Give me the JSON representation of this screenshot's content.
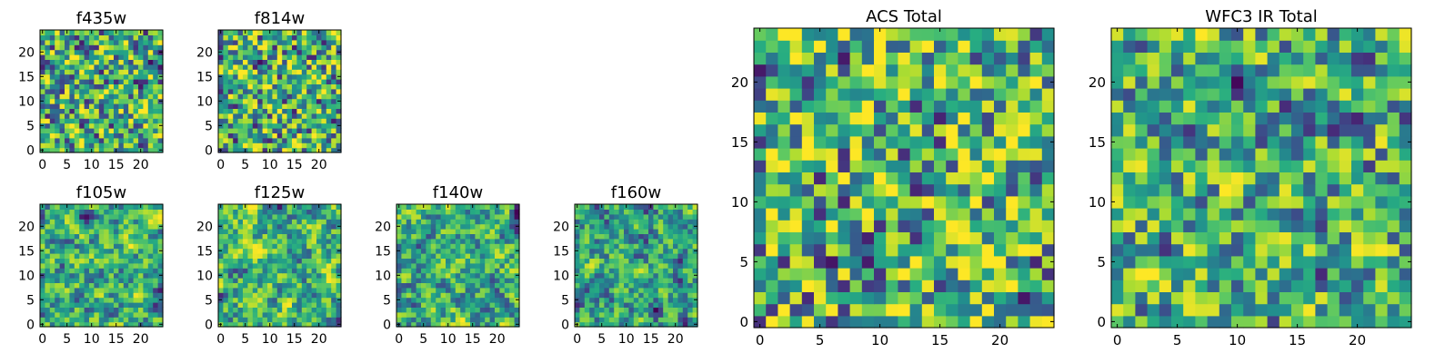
{
  "chart_data": [
    {
      "type": "heatmap",
      "title": "f435w",
      "xticks": [
        "0",
        "5",
        "10",
        "15",
        "20"
      ],
      "yticks": [
        "0",
        "5",
        "10",
        "15",
        "20"
      ],
      "xlim": [
        0,
        24
      ],
      "ylim": [
        0,
        24
      ],
      "grid": false,
      "colormap": "viridis",
      "seed": 11,
      "smooth": 0.1,
      "bias": 0.1
    },
    {
      "type": "heatmap",
      "title": "f814w",
      "xticks": [
        "0",
        "5",
        "10",
        "15",
        "20"
      ],
      "yticks": [
        "0",
        "5",
        "10",
        "15",
        "20"
      ],
      "xlim": [
        0,
        24
      ],
      "ylim": [
        0,
        24
      ],
      "grid": false,
      "colormap": "viridis",
      "seed": 23,
      "smooth": 0.1,
      "bias": 0.1
    },
    {
      "type": "heatmap",
      "title": "f105w",
      "xticks": [
        "0",
        "5",
        "10",
        "15",
        "20"
      ],
      "yticks": [
        "0",
        "5",
        "10",
        "15",
        "20"
      ],
      "xlim": [
        0,
        24
      ],
      "ylim": [
        0,
        24
      ],
      "grid": false,
      "colormap": "viridis",
      "seed": 37,
      "smooth": 0.55,
      "bias": 0.1
    },
    {
      "type": "heatmap",
      "title": "f125w",
      "xticks": [
        "0",
        "5",
        "10",
        "15",
        "20"
      ],
      "yticks": [
        "0",
        "5",
        "10",
        "15",
        "20"
      ],
      "xlim": [
        0,
        24
      ],
      "ylim": [
        0,
        24
      ],
      "grid": false,
      "colormap": "viridis",
      "seed": 41,
      "smooth": 0.55,
      "bias": 0.15
    },
    {
      "type": "heatmap",
      "title": "f140w",
      "xticks": [
        "0",
        "5",
        "10",
        "15",
        "20"
      ],
      "yticks": [
        "0",
        "5",
        "10",
        "15",
        "20"
      ],
      "xlim": [
        0,
        24
      ],
      "ylim": [
        0,
        24
      ],
      "grid": false,
      "colormap": "viridis",
      "seed": 53,
      "smooth": 0.55,
      "bias": 0.0
    },
    {
      "type": "heatmap",
      "title": "f160w",
      "xticks": [
        "0",
        "5",
        "10",
        "15",
        "20"
      ],
      "yticks": [
        "0",
        "5",
        "10",
        "15",
        "20"
      ],
      "xlim": [
        0,
        24
      ],
      "ylim": [
        0,
        24
      ],
      "grid": false,
      "colormap": "viridis",
      "seed": 67,
      "smooth": 0.55,
      "bias": -0.1
    },
    {
      "type": "heatmap",
      "title": "ACS Total",
      "xticks": [
        "0",
        "5",
        "10",
        "15",
        "20"
      ],
      "yticks": [
        "0",
        "5",
        "10",
        "15",
        "20"
      ],
      "xlim": [
        0,
        24
      ],
      "ylim": [
        0,
        24
      ],
      "grid": false,
      "colormap": "viridis",
      "seed": 79,
      "smooth": 0.1,
      "bias": 0.15
    },
    {
      "type": "heatmap",
      "title": "WFC3 IR Total",
      "xticks": [
        "0",
        "5",
        "10",
        "15",
        "20"
      ],
      "yticks": [
        "0",
        "5",
        "10",
        "15",
        "20"
      ],
      "xlim": [
        0,
        24
      ],
      "ylim": [
        0,
        24
      ],
      "grid": false,
      "colormap": "viridis",
      "seed": 97,
      "smooth": 0.35,
      "bias": 0.05
    }
  ]
}
